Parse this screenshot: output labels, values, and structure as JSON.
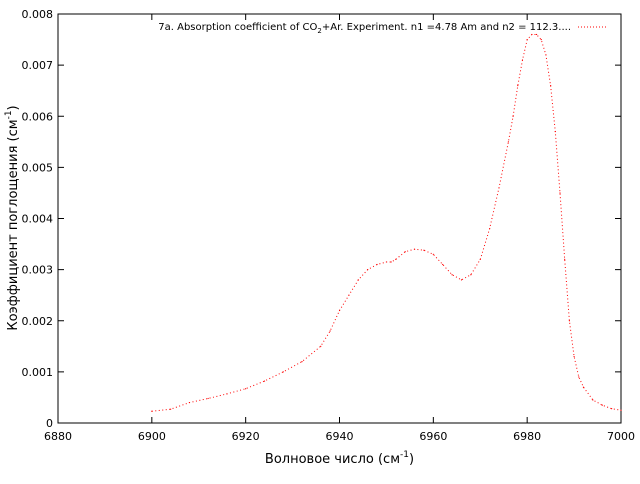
{
  "chart_data": {
    "type": "line",
    "title": "",
    "xlabel": "Волновое число (см",
    "xlabel_sup": "-1",
    "xlabel_end": ")",
    "ylabel": "Коэффициент поглощения (см",
    "ylabel_sup": "-1",
    "ylabel_end": ")",
    "xlim": [
      6880,
      7000
    ],
    "ylim": [
      0,
      0.008
    ],
    "x_ticks": [
      6880,
      6900,
      6920,
      6940,
      6960,
      6980,
      7000
    ],
    "x_tick_labels": [
      "6880",
      "6900",
      "6920",
      "6940",
      "6960",
      "6980",
      "7000"
    ],
    "y_ticks": [
      0,
      0.001,
      0.002,
      0.003,
      0.004,
      0.005,
      0.006,
      0.007,
      0.008
    ],
    "y_tick_labels": [
      "0",
      "0.001",
      "0.002",
      "0.003",
      "0.004",
      "0.005",
      "0.006",
      "0.007",
      "0.008"
    ],
    "grid": false,
    "legend_position": "top-right",
    "legend_parts": {
      "a": "7a. Absorption coefficient of CO",
      "sub": "2",
      "b": "+Ar. Experiment. n1 =4.78 Am and n2 = 112.3...."
    },
    "series": [
      {
        "color": "#ff0000",
        "style": "dotted",
        "x": [
          6900,
          6904,
          6908,
          6912,
          6916,
          6920,
          6924,
          6928,
          6932,
          6936,
          6938,
          6940,
          6942,
          6944,
          6946,
          6948,
          6950,
          6951,
          6952,
          6954,
          6956,
          6958,
          6960,
          6962,
          6964,
          6966,
          6968,
          6970,
          6972,
          6974,
          6976,
          6977,
          6978,
          6979,
          6980,
          6981,
          6982,
          6983,
          6984,
          6985,
          6986,
          6987,
          6988,
          6989,
          6990,
          6991,
          6992,
          6994,
          6996,
          6998,
          7000
        ],
        "y": [
          0.00023,
          0.00027,
          0.0004,
          0.00048,
          0.00057,
          0.00067,
          0.00082,
          0.001,
          0.0012,
          0.0015,
          0.0018,
          0.0022,
          0.0025,
          0.0028,
          0.003,
          0.0031,
          0.00315,
          0.00315,
          0.0032,
          0.00335,
          0.0034,
          0.00338,
          0.0033,
          0.0031,
          0.0029,
          0.0028,
          0.0029,
          0.0032,
          0.0038,
          0.0046,
          0.0055,
          0.006,
          0.0066,
          0.0071,
          0.0075,
          0.0076,
          0.0076,
          0.0075,
          0.0072,
          0.0066,
          0.0057,
          0.0045,
          0.0032,
          0.002,
          0.0013,
          0.0009,
          0.0007,
          0.00045,
          0.00035,
          0.00028,
          0.00025
        ]
      }
    ]
  }
}
